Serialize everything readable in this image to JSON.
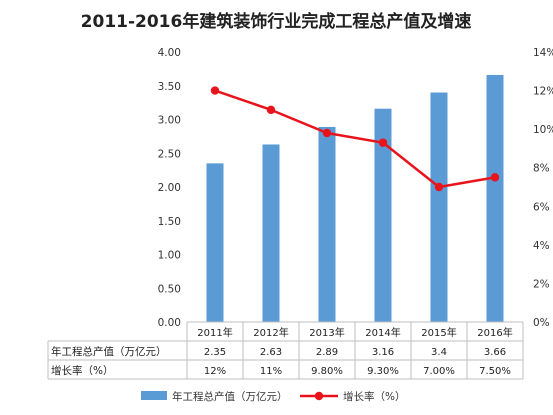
{
  "chart_data": {
    "type": "bar",
    "title": "2011-2016年建筑装饰行业完成工程总产值及增速",
    "categories": [
      "2011年",
      "2012年",
      "2013年",
      "2014年",
      "2015年",
      "2016年"
    ],
    "series": [
      {
        "name": "年工程总产值（万亿元）",
        "type": "bar",
        "axis": "left",
        "color": "#5B9BD5",
        "values": [
          2.35,
          2.63,
          2.89,
          3.16,
          3.4,
          3.66
        ],
        "labels": [
          "2.35",
          "2.63",
          "2.89",
          "3.16",
          "3.4",
          "3.66"
        ]
      },
      {
        "name": "增长率（%）",
        "type": "line",
        "axis": "right",
        "color": "#E8141B",
        "values": [
          12,
          11,
          9.8,
          9.3,
          7.0,
          7.5
        ],
        "labels": [
          "12%",
          "11%",
          "9.80%",
          "9.30%",
          "7.00%",
          "7.50%"
        ]
      }
    ],
    "y_left": {
      "range": [
        0,
        4
      ],
      "ticks": [
        "0.00",
        "0.50",
        "1.00",
        "1.50",
        "2.00",
        "2.50",
        "3.00",
        "3.50",
        "4.00"
      ]
    },
    "y_right": {
      "range": [
        0,
        14
      ],
      "ticks": [
        "0%",
        "2%",
        "4%",
        "6%",
        "8%",
        "10%",
        "12%",
        "14%"
      ]
    },
    "grid": false,
    "legend": "bottom",
    "data_table": {
      "row_labels": [
        "年工程总产值（万亿元）",
        "增长率（%）"
      ]
    }
  }
}
